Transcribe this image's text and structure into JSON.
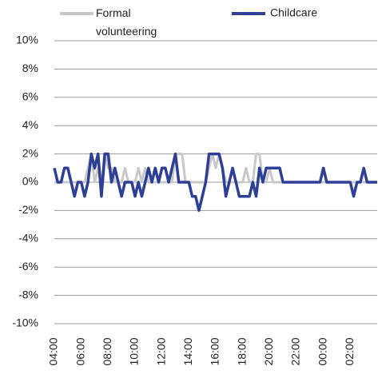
{
  "chart_data": {
    "type": "line",
    "categories": [
      "04:00",
      null,
      null,
      null,
      null,
      null,
      null,
      null,
      "06:00",
      null,
      null,
      null,
      null,
      null,
      null,
      null,
      "08:00",
      null,
      null,
      null,
      null,
      null,
      null,
      null,
      "10:00",
      null,
      null,
      null,
      null,
      null,
      null,
      null,
      "12:00",
      null,
      null,
      null,
      null,
      null,
      null,
      null,
      "14:00",
      null,
      null,
      null,
      null,
      null,
      null,
      null,
      "16:00",
      null,
      null,
      null,
      null,
      null,
      null,
      null,
      "18:00",
      null,
      null,
      null,
      null,
      null,
      null,
      null,
      "20:00",
      null,
      null,
      null,
      null,
      null,
      null,
      null,
      "22:00",
      null,
      null,
      null,
      null,
      null,
      null,
      null,
      "00:00",
      null,
      null,
      null,
      null,
      null,
      null,
      null,
      "02:00",
      null,
      null,
      null,
      null,
      null,
      null,
      null,
      null
    ],
    "series": [
      {
        "name": "Formal volunteering",
        "color": "#c8c8c8",
        "values": [
          0,
          0,
          0,
          0,
          0,
          0,
          0,
          0,
          0,
          0,
          1,
          2,
          0,
          1,
          0,
          2,
          1,
          1,
          0,
          0,
          0,
          1,
          0,
          0,
          0,
          1,
          0,
          1,
          0,
          0,
          0,
          0,
          0,
          0,
          0,
          0,
          2,
          2,
          2,
          0,
          0,
          0,
          0,
          0,
          0,
          0,
          1,
          2,
          1,
          2,
          1,
          0,
          0,
          0,
          0,
          0,
          0,
          1,
          0,
          0,
          2,
          2,
          0,
          0,
          1,
          0,
          0,
          0,
          0,
          0,
          0,
          0,
          0,
          0,
          0,
          0,
          0,
          0,
          0,
          0,
          0,
          0,
          0,
          0,
          0,
          0,
          0,
          0,
          0,
          0,
          0,
          0,
          0,
          0,
          0,
          0,
          0
        ]
      },
      {
        "name": "Childcare",
        "color": "#2e3f97",
        "values": [
          1,
          0,
          0,
          1,
          1,
          0,
          -1,
          0,
          0,
          -1,
          0,
          2,
          1,
          2,
          -1,
          2,
          2,
          0,
          1,
          0,
          -1,
          0,
          0,
          0,
          -1,
          0,
          -1,
          0,
          1,
          0,
          1,
          0,
          1,
          1,
          0,
          1,
          2,
          0,
          0,
          0,
          0,
          -1,
          -1,
          -2,
          -1,
          0,
          2,
          2,
          2,
          2,
          1,
          -1,
          0,
          1,
          0,
          -1,
          -1,
          -1,
          -1,
          0,
          -1,
          1,
          0,
          1,
          1,
          1,
          1,
          1,
          0,
          0,
          0,
          0,
          0,
          0,
          0,
          0,
          0,
          0,
          0,
          0,
          1,
          0,
          0,
          0,
          0,
          0,
          0,
          0,
          0,
          -1,
          0,
          0,
          1,
          0,
          0,
          0,
          0
        ]
      }
    ],
    "ylim": [
      -10,
      10
    ],
    "yticks": [
      {
        "value": -10,
        "label": "-10%"
      },
      {
        "value": -8,
        "label": "-8%"
      },
      {
        "value": -6,
        "label": "-6%"
      },
      {
        "value": -4,
        "label": "-4%"
      },
      {
        "value": -2,
        "label": "-2%"
      },
      {
        "value": 0,
        "label": "0%"
      },
      {
        "value": 2,
        "label": "2%"
      },
      {
        "value": 4,
        "label": "4%"
      },
      {
        "value": 6,
        "label": "6%"
      },
      {
        "value": 8,
        "label": "8%"
      },
      {
        "value": 10,
        "label": "10%"
      }
    ],
    "grid": true
  }
}
